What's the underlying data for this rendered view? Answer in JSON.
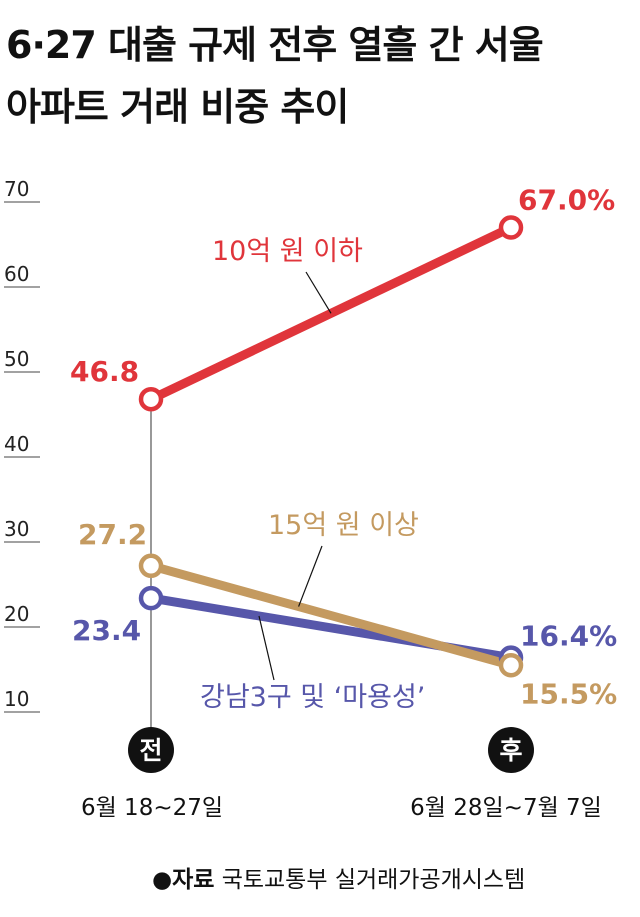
{
  "title_line1": "6·27 대출 규제 전후 열흘 간 서울",
  "title_line2": "아파트 거래 비중 추이",
  "source": {
    "label": "●자료",
    "text": "국토교통부 실거래가공개시스템"
  },
  "colors": {
    "red": "#e0353b",
    "gold": "#c49a60",
    "blue": "#5757aa"
  },
  "chart_data": {
    "type": "line",
    "title": "6·27 대출 규제 전후 열흘 간 서울 아파트 거래 비중 추이",
    "categories": [
      "전",
      "후"
    ],
    "category_labels": [
      "6월 18~27일",
      "6월 28일~7월 7일"
    ],
    "yticks": [
      10,
      20,
      30,
      40,
      50,
      60,
      70
    ],
    "ylim": [
      10,
      70
    ],
    "series": [
      {
        "name": "10억 원 이하",
        "values": [
          46.8,
          67.0
        ],
        "labels": [
          "46.8",
          "67.0%"
        ],
        "color": "#e0353b"
      },
      {
        "name": "15억 원 이상",
        "values": [
          27.2,
          15.5
        ],
        "labels": [
          "27.2",
          "15.5%"
        ],
        "color": "#c49a60"
      },
      {
        "name": "강남3구 및 ‘마용성’",
        "values": [
          23.4,
          16.4
        ],
        "labels": [
          "23.4",
          "16.4%"
        ],
        "color": "#5757aa"
      }
    ]
  }
}
